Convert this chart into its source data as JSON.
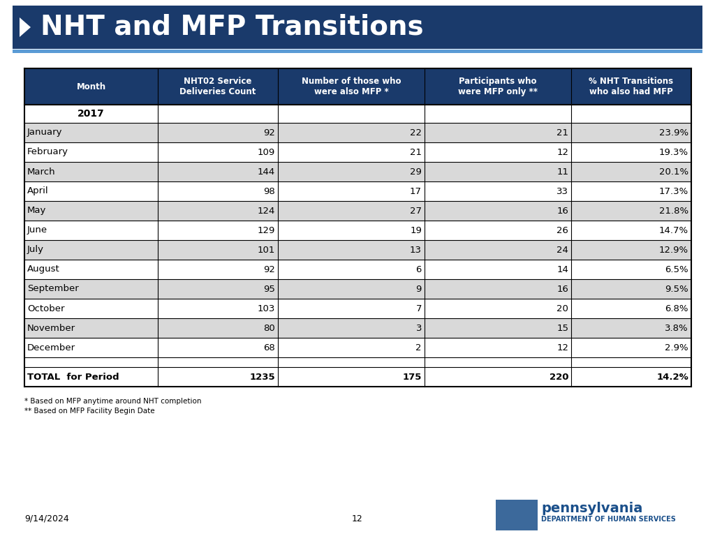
{
  "title": "NHT and MFP Transitions",
  "title_bg_color": "#1a3a6b",
  "title_text_color": "#ffffff",
  "accent_line_color": "#5b9bd5",
  "background_color": "#ffffff",
  "col_headers": [
    "Month",
    "NHT02 Service\nDeliveries Count",
    "Number of those who\nwere also MFP *",
    "Participants who\nwere MFP only **",
    "% NHT Transitions\nwho also had MFP"
  ],
  "year_row": "2017",
  "months": [
    "January",
    "February",
    "March",
    "April",
    "May",
    "June",
    "July",
    "August",
    "September",
    "October",
    "November",
    "December"
  ],
  "nht02": [
    92,
    109,
    144,
    98,
    124,
    129,
    101,
    92,
    95,
    103,
    80,
    68
  ],
  "also_mfp": [
    22,
    21,
    29,
    17,
    27,
    19,
    13,
    6,
    9,
    7,
    3,
    2
  ],
  "mfp_only": [
    21,
    12,
    11,
    33,
    16,
    26,
    24,
    14,
    16,
    20,
    15,
    12
  ],
  "pct_nht": [
    "23.9%",
    "19.3%",
    "20.1%",
    "17.3%",
    "21.8%",
    "14.7%",
    "12.9%",
    "6.5%",
    "9.5%",
    "6.8%",
    "3.8%",
    "2.9%"
  ],
  "total_nht02": "1235",
  "total_also_mfp": "175",
  "total_mfp_only": "220",
  "total_pct": "14.2%",
  "footnote1": "* Based on MFP anytime around NHT completion",
  "footnote2": "** Based on MFP Facility Begin Date",
  "footer_date": "9/14/2024",
  "footer_page": "12",
  "header_bg_color": "#1a3a6b",
  "header_text_color": "#ffffff",
  "row_even_color": "#d9d9d9",
  "row_odd_color": "#ffffff",
  "total_row_color": "#ffffff",
  "grid_color": "#000000"
}
